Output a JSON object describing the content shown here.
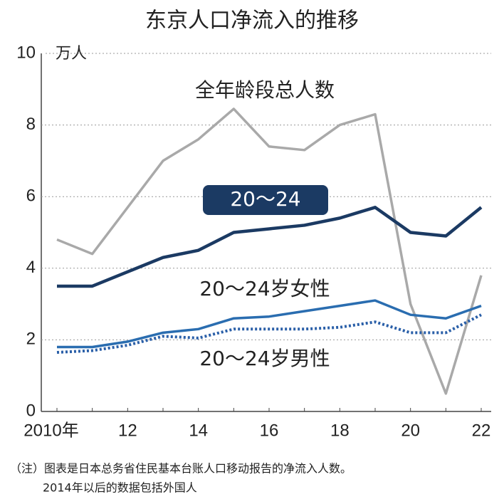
{
  "chart_data": {
    "type": "line",
    "title": "东京人口净流入的推移",
    "y_unit": "万人",
    "x": [
      2010,
      2011,
      2012,
      2013,
      2014,
      2015,
      2016,
      2017,
      2018,
      2019,
      2020,
      2021,
      2022
    ],
    "xlim": [
      2010,
      2022
    ],
    "xticks": [
      {
        "value": 2010,
        "label": "2010年"
      },
      {
        "value": 2012,
        "label": "12"
      },
      {
        "value": 2014,
        "label": "14"
      },
      {
        "value": 2016,
        "label": "16"
      },
      {
        "value": 2018,
        "label": "18"
      },
      {
        "value": 2020,
        "label": "20"
      },
      {
        "value": 2022,
        "label": "22"
      }
    ],
    "ylim": [
      0,
      10
    ],
    "yticks": [
      0,
      2,
      4,
      6,
      8,
      10
    ],
    "grid": true,
    "series": [
      {
        "name": "全年龄段总人数",
        "color": "#a9a9a9",
        "style": "solid",
        "values": [
          4.8,
          4.4,
          5.7,
          7.0,
          7.6,
          8.45,
          7.4,
          7.3,
          8.0,
          8.3,
          3.0,
          0.5,
          3.8
        ]
      },
      {
        "name": "20～24",
        "color": "#1b3a63",
        "style": "solid",
        "values": [
          3.5,
          3.5,
          3.9,
          4.3,
          4.5,
          5.0,
          5.1,
          5.2,
          5.4,
          5.7,
          5.0,
          4.9,
          5.7
        ]
      },
      {
        "name": "20～24岁女性",
        "color": "#2a6db0",
        "style": "solid",
        "values": [
          1.8,
          1.8,
          1.95,
          2.2,
          2.3,
          2.6,
          2.65,
          2.8,
          2.95,
          3.1,
          2.7,
          2.6,
          2.95
        ]
      },
      {
        "name": "20～24岁男性",
        "color": "#2a5fa8",
        "style": "dotted",
        "values": [
          1.65,
          1.7,
          1.85,
          2.1,
          2.05,
          2.3,
          2.3,
          2.3,
          2.35,
          2.5,
          2.2,
          2.2,
          2.7
        ]
      }
    ],
    "notes": [
      "（注）图表是日本总务省住民基本台账人口移动报告的净流入人数。",
      "2014年以后的数据包括外国人"
    ]
  }
}
